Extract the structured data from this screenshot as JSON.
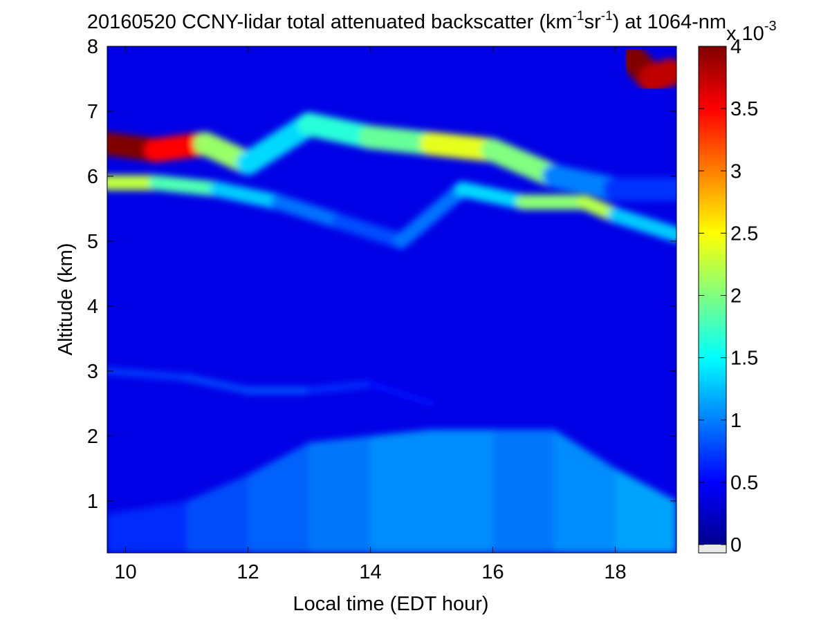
{
  "chart_data": {
    "type": "heatmap",
    "title": "20160520 CCNY-lidar total attenuated backscatter (km⁻¹sr⁻¹) at 1064-nm",
    "title_parts": {
      "pre": "20160520 CCNY-lidar total attenuated backscatter (km",
      "sup1": "-1",
      "mid": "sr",
      "sup2": "-1",
      "post": ") at 1064-nm"
    },
    "xlabel": "Local time (EDT hour)",
    "ylabel": "Altitude (km)",
    "xlim": [
      9.7,
      19.0
    ],
    "ylim": [
      0.2,
      8.0
    ],
    "x_ticks": [
      "10",
      "12",
      "14",
      "16",
      "18"
    ],
    "x_tick_values": [
      10,
      12,
      14,
      16,
      18
    ],
    "y_ticks": [
      "1",
      "2",
      "3",
      "4",
      "5",
      "6",
      "7",
      "8"
    ],
    "y_tick_values": [
      1,
      2,
      3,
      4,
      5,
      6,
      7,
      8
    ],
    "colorbar": {
      "colormap": "jet",
      "range": [
        0,
        4
      ],
      "ticks": [
        "0",
        "0.5",
        "1",
        "1.5",
        "2",
        "2.5",
        "3",
        "3.5",
        "4"
      ],
      "tick_values": [
        0,
        0.5,
        1,
        1.5,
        2,
        2.5,
        3,
        3.5,
        4
      ],
      "exponent_label": "x 10",
      "exponent_power": "-3"
    },
    "background_value": 0.4,
    "features": [
      {
        "name": "elevated aerosol layer (upper)",
        "points": [
          [
            9.7,
            6.5,
            4.0
          ],
          [
            10.5,
            6.4,
            4.0
          ],
          [
            11.3,
            6.5,
            3.0
          ],
          [
            12.0,
            6.2,
            1.2
          ],
          [
            13.0,
            6.8,
            1.5
          ],
          [
            14.0,
            6.6,
            1.8
          ],
          [
            15.0,
            6.5,
            2.0
          ],
          [
            16.0,
            6.4,
            2.8
          ],
          [
            17.0,
            6.0,
            1.2
          ],
          [
            18.0,
            5.8,
            0.8
          ],
          [
            19.0,
            5.8,
            0.6
          ]
        ]
      },
      {
        "name": "elevated aerosol layer (lower)",
        "points": [
          [
            9.7,
            5.9,
            2.5
          ],
          [
            10.5,
            5.9,
            2.0
          ],
          [
            11.5,
            5.8,
            1.6
          ],
          [
            12.5,
            5.6,
            1.0
          ],
          [
            13.5,
            5.3,
            0.9
          ],
          [
            14.5,
            5.0,
            0.7
          ],
          [
            15.5,
            5.8,
            1.2
          ],
          [
            16.5,
            5.6,
            1.5
          ],
          [
            17.5,
            5.6,
            2.6
          ],
          [
            18.0,
            5.4,
            1.8
          ],
          [
            19.0,
            5.1,
            0.8
          ]
        ]
      },
      {
        "name": "residual layer",
        "points": [
          [
            9.7,
            3.0,
            0.8
          ],
          [
            11.0,
            2.9,
            0.7
          ],
          [
            12.0,
            2.7,
            0.9
          ],
          [
            13.0,
            2.7,
            0.8
          ],
          [
            14.0,
            2.8,
            0.6
          ],
          [
            15.0,
            2.5,
            0.5
          ]
        ]
      },
      {
        "name": "boundary layer",
        "points": [
          [
            9.7,
            0.8,
            0.6
          ],
          [
            11.0,
            1.0,
            0.8
          ],
          [
            12.0,
            1.4,
            0.9
          ],
          [
            13.0,
            1.9,
            1.0
          ],
          [
            14.0,
            2.0,
            1.1
          ],
          [
            15.0,
            2.1,
            1.2
          ],
          [
            16.0,
            2.1,
            1.1
          ],
          [
            17.0,
            2.1,
            1.0
          ],
          [
            18.0,
            1.5,
            1.3
          ],
          [
            19.0,
            1.0,
            1.2
          ]
        ]
      },
      {
        "name": "high cloud",
        "points": [
          [
            18.3,
            7.8,
            4.0
          ],
          [
            18.6,
            7.5,
            4.0
          ],
          [
            18.9,
            7.6,
            3.5
          ]
        ]
      }
    ]
  }
}
